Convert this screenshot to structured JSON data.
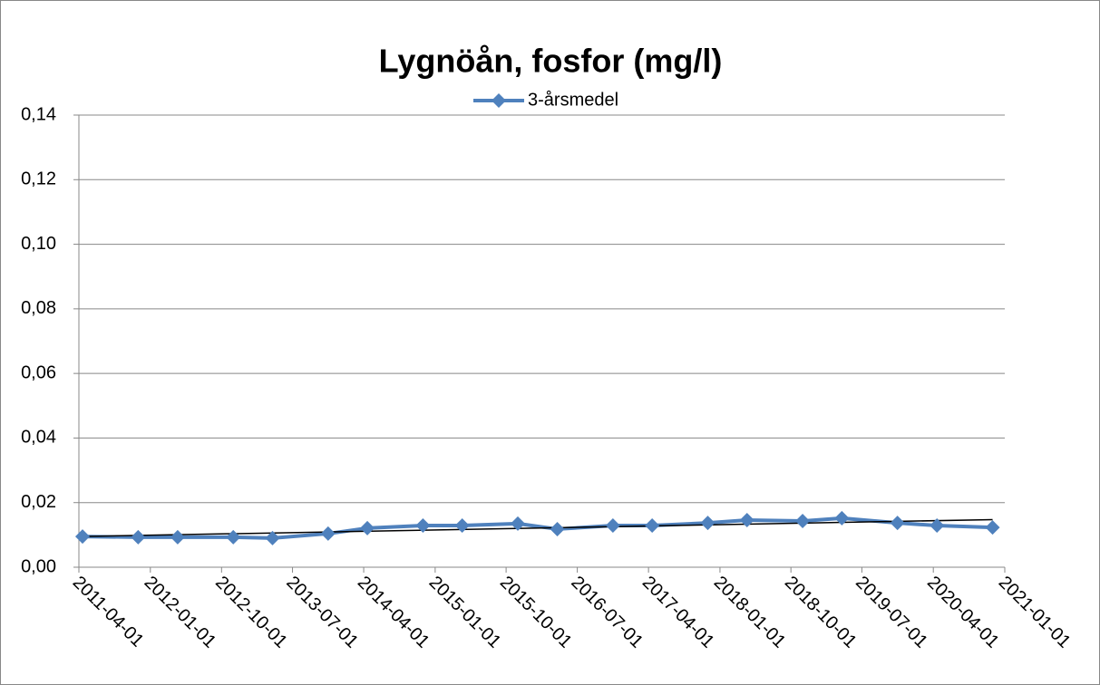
{
  "chart_data": {
    "type": "line",
    "title": "Lygnöån, fosfor (mg/l)",
    "x": [
      "2011-04-15",
      "2011-11-15",
      "2012-04-15",
      "2012-11-15",
      "2013-04-15",
      "2013-11-15",
      "2014-04-15",
      "2014-11-15",
      "2015-04-15",
      "2015-11-15",
      "2016-04-15",
      "2016-11-15",
      "2017-04-15",
      "2017-11-15",
      "2018-04-15",
      "2018-11-15",
      "2019-04-15",
      "2019-11-15",
      "2020-04-15",
      "2020-11-15"
    ],
    "series": [
      {
        "name": "3-årsmedel",
        "color": "#4f81bd",
        "values": [
          0.0095,
          0.0093,
          0.0093,
          0.0093,
          0.009,
          0.0104,
          0.0121,
          0.0129,
          0.0129,
          0.0135,
          0.0118,
          0.0129,
          0.0129,
          0.0137,
          0.0146,
          0.0143,
          0.0152,
          0.0137,
          0.0129,
          0.0123
        ]
      }
    ],
    "trendline": true,
    "trendline_color": "#000000",
    "xlim": [
      "2011-04-01",
      "2021-01-01"
    ],
    "xticks": [
      "2011-04-01",
      "2012-01-01",
      "2012-10-01",
      "2013-07-01",
      "2014-04-01",
      "2015-01-01",
      "2015-10-01",
      "2016-07-01",
      "2017-04-01",
      "2018-01-01",
      "2018-10-01",
      "2019-07-01",
      "2020-04-01",
      "2021-01-01"
    ],
    "ylim": [
      0,
      0.14
    ],
    "yticks": [
      {
        "value": 0,
        "label": "0,00"
      },
      {
        "value": 0.02,
        "label": "0,02"
      },
      {
        "value": 0.04,
        "label": "0,04"
      },
      {
        "value": 0.06,
        "label": "0,06"
      },
      {
        "value": 0.08,
        "label": "0,08"
      },
      {
        "value": 0.1,
        "label": "0,10"
      },
      {
        "value": 0.12,
        "label": "0,12"
      },
      {
        "value": 0.14,
        "label": "0,14"
      }
    ],
    "grid": true,
    "legend": "top"
  }
}
